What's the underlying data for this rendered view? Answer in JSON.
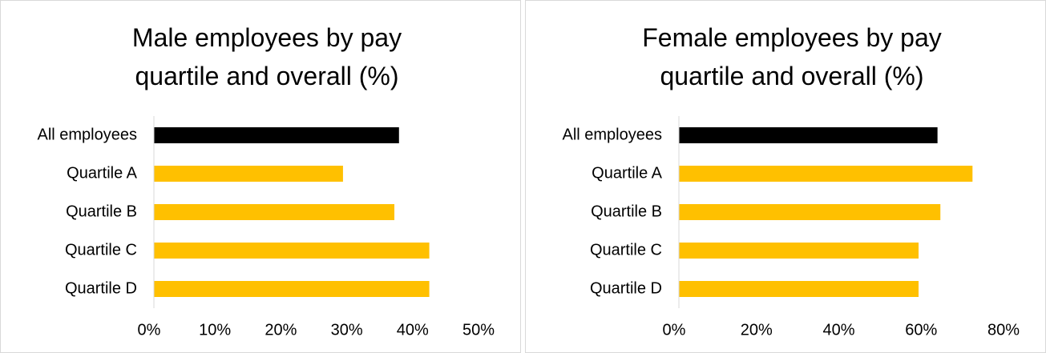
{
  "chart_data": [
    {
      "type": "bar",
      "orientation": "horizontal",
      "title": "Male employees by pay quartile and overall (%)",
      "categories": [
        "All employees",
        "Quartile A",
        "Quartile B",
        "Quartile C",
        "Quartile D"
      ],
      "values": [
        37.2,
        28.7,
        36.5,
        41.8,
        41.8
      ],
      "colors": [
        "#000000",
        "#ffc000",
        "#ffc000",
        "#ffc000",
        "#ffc000"
      ],
      "xlim": [
        0,
        50
      ],
      "xticks": [
        {
          "value": 0,
          "label": "0%"
        },
        {
          "value": 10,
          "label": "10%"
        },
        {
          "value": 20,
          "label": "20%"
        },
        {
          "value": 30,
          "label": "30%"
        },
        {
          "value": 40,
          "label": "40%"
        },
        {
          "value": 50,
          "label": "50%"
        }
      ]
    },
    {
      "type": "bar",
      "orientation": "horizontal",
      "title": "Female employees by pay quartile and overall (%)",
      "categories": [
        "All employees",
        "Quartile A",
        "Quartile B",
        "Quartile C",
        "Quartile D"
      ],
      "values": [
        62.8,
        71.3,
        63.5,
        58.2,
        58.2
      ],
      "colors": [
        "#000000",
        "#ffc000",
        "#ffc000",
        "#ffc000",
        "#ffc000"
      ],
      "xlim": [
        0,
        80
      ],
      "xticks": [
        {
          "value": 0,
          "label": "0%"
        },
        {
          "value": 20,
          "label": "20%"
        },
        {
          "value": 40,
          "label": "40%"
        },
        {
          "value": 60,
          "label": "60%"
        },
        {
          "value": 80,
          "label": "80%"
        }
      ]
    }
  ]
}
